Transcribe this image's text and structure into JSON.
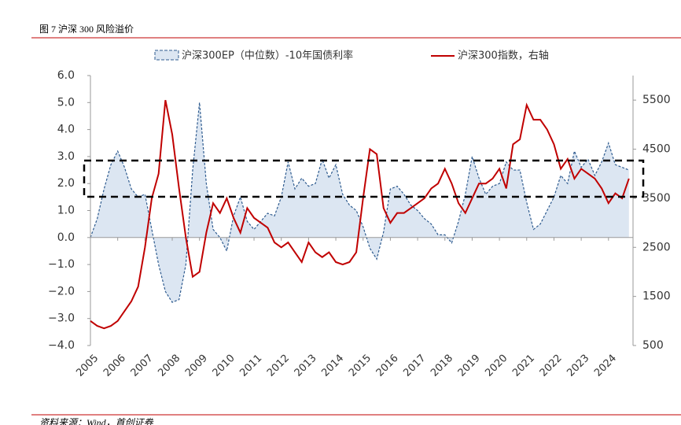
{
  "chart_data": {
    "type": "area_line",
    "title": "图 7 沪深 300 风险溢价",
    "source": "资料来源：Wind，首创证券",
    "x": [
      2005,
      2005.25,
      2005.5,
      2005.75,
      2006,
      2006.25,
      2006.5,
      2006.75,
      2007,
      2007.25,
      2007.5,
      2007.75,
      2008,
      2008.25,
      2008.5,
      2008.75,
      2009,
      2009.25,
      2009.5,
      2009.75,
      2010,
      2010.25,
      2010.5,
      2010.75,
      2011,
      2011.25,
      2011.5,
      2011.75,
      2012,
      2012.25,
      2012.5,
      2012.75,
      2013,
      2013.25,
      2013.5,
      2013.75,
      2014,
      2014.25,
      2014.5,
      2014.75,
      2015,
      2015.25,
      2015.5,
      2015.75,
      2016,
      2016.25,
      2016.5,
      2016.75,
      2017,
      2017.25,
      2017.5,
      2017.75,
      2018,
      2018.25,
      2018.5,
      2018.75,
      2019,
      2019.25,
      2019.5,
      2019.75,
      2020,
      2020.25,
      2020.5,
      2020.75,
      2021,
      2021.25,
      2021.5,
      2021.75,
      2022,
      2022.25,
      2022.5,
      2022.75,
      2023,
      2023.25,
      2023.5,
      2023.75,
      2024,
      2024.25,
      2024.5,
      2024.75
    ],
    "series": [
      {
        "name": "沪深300EP（中位数）-10年国债利率",
        "color": "#2e5b8f",
        "fill": "#dce6f2",
        "values": [
          0.0,
          0.7,
          1.8,
          2.7,
          3.2,
          2.6,
          1.8,
          1.5,
          1.6,
          0.3,
          -1.0,
          -2.0,
          -2.4,
          -2.3,
          -1.0,
          2.5,
          5.0,
          2.0,
          0.3,
          0.0,
          -0.5,
          0.8,
          1.5,
          0.6,
          0.3,
          0.6,
          0.9,
          0.8,
          1.5,
          2.8,
          1.8,
          2.2,
          1.9,
          2.0,
          2.9,
          2.2,
          2.7,
          1.6,
          1.2,
          1.0,
          0.4,
          -0.4,
          -0.8,
          0.2,
          1.8,
          1.9,
          1.6,
          1.2,
          1.0,
          0.7,
          0.5,
          0.1,
          0.1,
          -0.2,
          0.6,
          1.6,
          3.0,
          2.2,
          1.6,
          1.9,
          2.0,
          2.8,
          2.5,
          2.5,
          1.3,
          0.3,
          0.5,
          1.0,
          1.5,
          2.3,
          2.0,
          3.2,
          2.6,
          2.9,
          2.3,
          2.8,
          3.5,
          2.7,
          2.6,
          2.5
        ]
      },
      {
        "name": "沪深300指数，右轴",
        "color": "#c00000",
        "axis": "y2",
        "values": [
          1000,
          900,
          850,
          900,
          1000,
          1200,
          1400,
          1700,
          2500,
          3500,
          4000,
          5500,
          4800,
          3700,
          2700,
          1900,
          2000,
          2800,
          3400,
          3200,
          3500,
          3100,
          2800,
          3300,
          3100,
          3000,
          2900,
          2600,
          2500,
          2600,
          2400,
          2200,
          2600,
          2400,
          2300,
          2400,
          2200,
          2150,
          2200,
          2400,
          3500,
          4500,
          4400,
          3300,
          3000,
          3200,
          3200,
          3300,
          3400,
          3500,
          3700,
          3800,
          4100,
          3800,
          3400,
          3200,
          3500,
          3800,
          3800,
          3900,
          4100,
          3700,
          4600,
          4700,
          5400,
          5100,
          5100,
          4900,
          4600,
          4100,
          4300,
          3900,
          4100,
          4000,
          3900,
          3700,
          3400,
          3600,
          3500,
          3900
        ]
      }
    ],
    "xlim": [
      2005,
      2024.9
    ],
    "xticks": [
      2005,
      2006,
      2007,
      2008,
      2009,
      2010,
      2011,
      2012,
      2013,
      2014,
      2015,
      2016,
      2017,
      2018,
      2019,
      2020,
      2021,
      2022,
      2023,
      2024
    ],
    "ylim": [
      -4,
      6
    ],
    "yticks": [
      {
        "value": 6,
        "label": "6.0"
      },
      {
        "value": 5,
        "label": "5.0"
      },
      {
        "value": 4,
        "label": "4.0"
      },
      {
        "value": 3,
        "label": "3.0"
      },
      {
        "value": 2,
        "label": "2.0"
      },
      {
        "value": 1,
        "label": "1.0"
      },
      {
        "value": 0,
        "label": "0.0"
      },
      {
        "value": -1,
        "label": "−1.0"
      },
      {
        "value": -2,
        "label": "−2.0"
      },
      {
        "value": -3,
        "label": "−3.0"
      },
      {
        "value": -4,
        "label": "−4.0"
      }
    ],
    "y2lim": [
      500,
      6000
    ],
    "y2ticks": [
      500,
      1500,
      2500,
      3500,
      4500,
      5500
    ]
  }
}
